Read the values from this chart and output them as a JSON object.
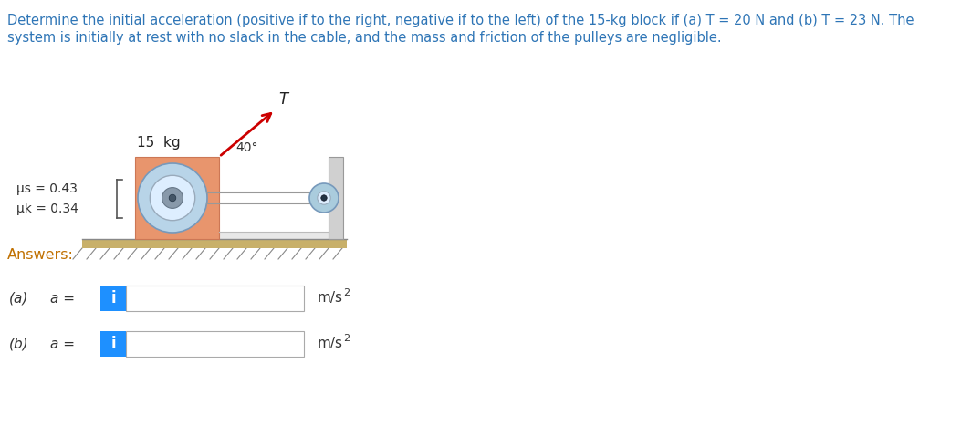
{
  "title_line1": "Determine the initial acceleration (positive if to the right, negative if to the left) of the 15-kg block if (a) T = 20 N and (b) T = 23 N. The",
  "title_line2": "system is initially at rest with no slack in the cable, and the mass and friction of the pulleys are negligible.",
  "title_color": "#2e75b6",
  "title_fontsize": 10.5,
  "bg_color": "#ffffff",
  "answers_label": "Answers:",
  "answers_color": "#c07000",
  "answers_fontsize": 11.5,
  "part_a_label_1": "(a)",
  "part_a_label_2": "a =",
  "part_b_label_1": "(b)",
  "part_b_label_2": "a =",
  "units": "m/s",
  "part_label_color": "#333333",
  "box_bg": "#ffffff",
  "box_border": "#aaaaaa",
  "blue_btn_color": "#1e90ff",
  "blue_btn_text": "i",
  "blue_btn_text_color": "#ffffff",
  "block_color": "#e8956d",
  "wall_color": "#d0d0d0",
  "wall_border": "#999999",
  "floor_color": "#c8b06a",
  "pulley_large_outer": "#aaccdd",
  "pulley_large_inner": "#ddeeff",
  "pulley_hub_color": "#6688aa",
  "pulley_small_outer": "#aaccdd",
  "pulley_small_hub": "#223344",
  "cable_color": "#999999",
  "arrow_color": "#cc0000",
  "angle_label": "40°",
  "mass_label": "15  kg",
  "T_label": "T",
  "mu_s_label": "μs = 0.43",
  "mu_k_label": "μk = 0.34",
  "hatch_color": "#888888",
  "ground_line_color": "#888888",
  "bracket_color": "#555555"
}
